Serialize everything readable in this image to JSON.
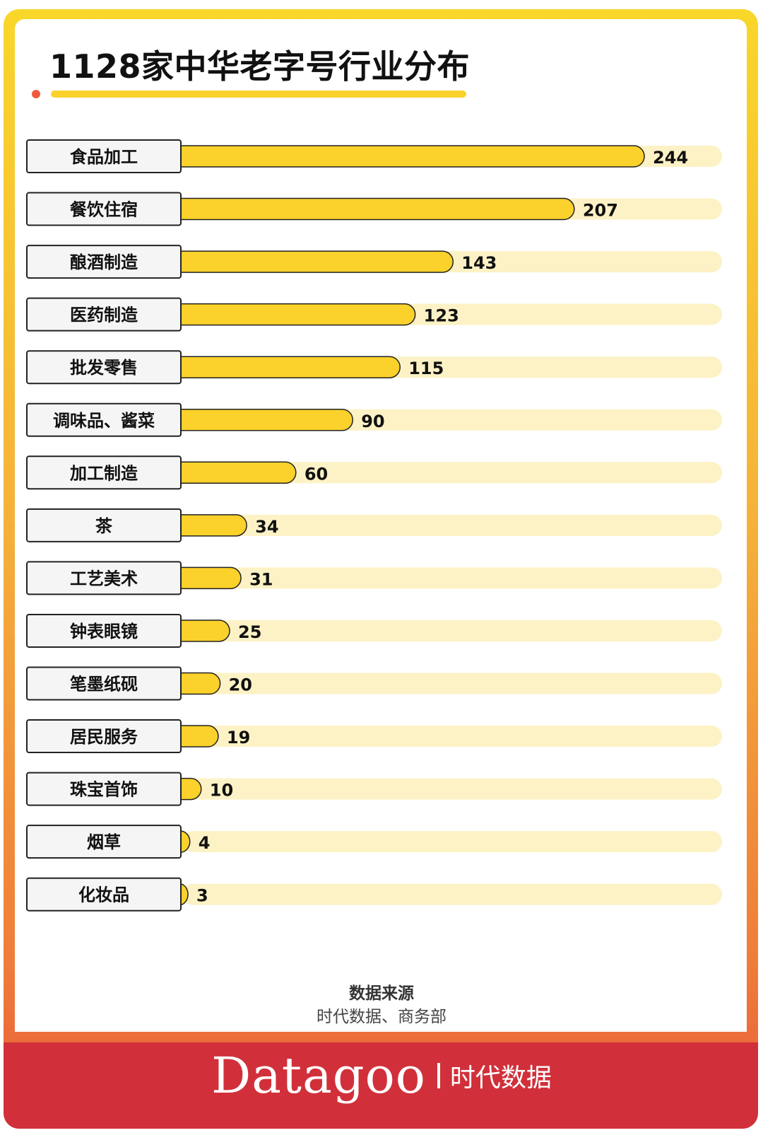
{
  "colors": {
    "frame_top": "#f9d62a",
    "frame_bottom": "#e85b3a",
    "bar_fill": "#fbd12b",
    "bar_track": "#fdf2c5",
    "footer": "#d1303a",
    "label_box": "#f5f5f5",
    "text": "#111111"
  },
  "chart_data": {
    "type": "bar",
    "orientation": "horizontal",
    "title": "1128家中华老字号行业分布",
    "categories": [
      "食品加工",
      "餐饮住宿",
      "酿酒制造",
      "医药制造",
      "批发零售",
      "调味品、酱菜",
      "加工制造",
      "茶",
      "工艺美术",
      "钟表眼镜",
      "笔墨纸砚",
      "居民服务",
      "珠宝首饰",
      "烟草",
      "化妆品"
    ],
    "values": [
      244,
      207,
      143,
      123,
      115,
      90,
      60,
      34,
      31,
      25,
      20,
      19,
      10,
      4,
      3
    ],
    "xlim": [
      0,
      285
    ],
    "grid": false,
    "legend": false,
    "data_labels": true
  },
  "source": {
    "title": "数据来源",
    "text": "时代数据、商务部"
  },
  "footer": {
    "logo": "Datagoo",
    "brand_cn": "时代数据"
  }
}
